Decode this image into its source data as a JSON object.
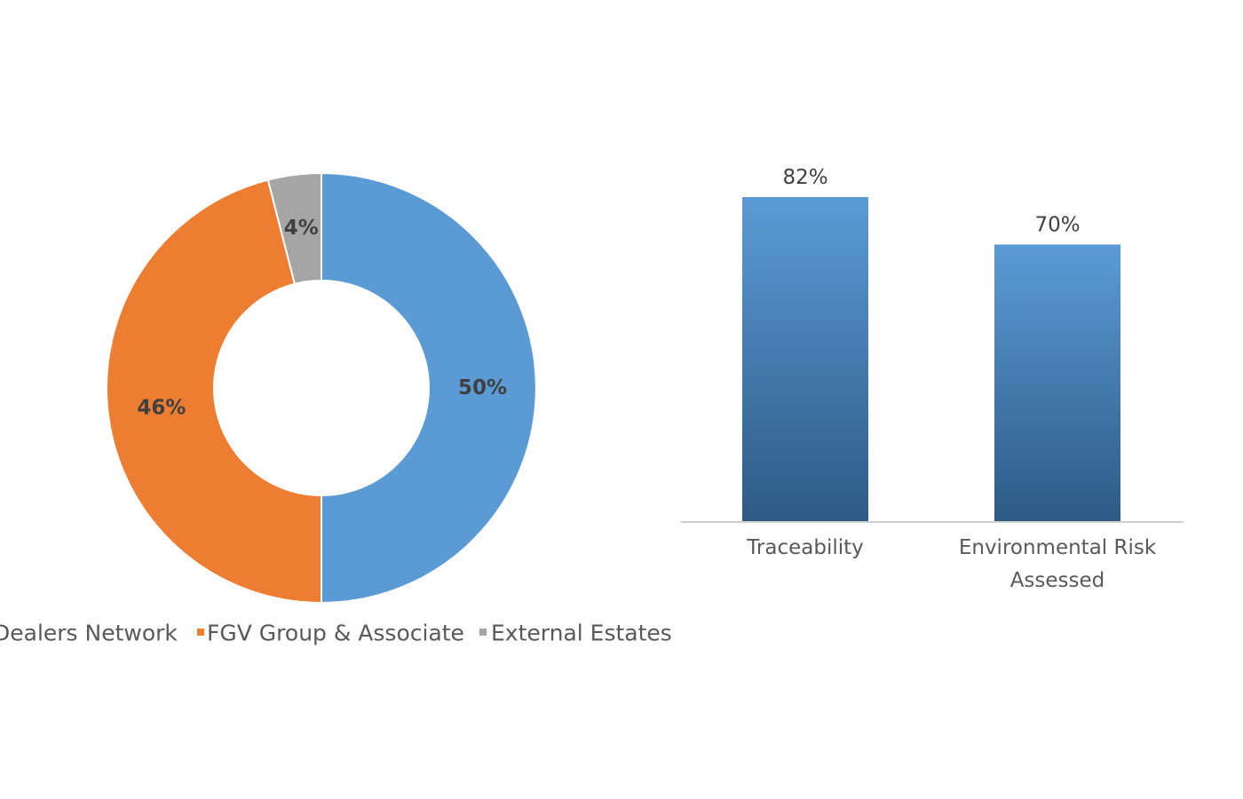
{
  "chart_data": [
    {
      "type": "pie",
      "variant": "donut",
      "categories": [
        "Dealers Network",
        "FGV Group & Associate",
        "External Estates"
      ],
      "values": [
        50,
        46,
        4
      ],
      "data_labels": [
        "50%",
        "46%",
        "4%"
      ],
      "colors": [
        "#5b9bd5",
        "#ed7d31",
        "#a5a5a5"
      ],
      "legend": {
        "position": "bottom",
        "entries": [
          "Dealers Network",
          "FGV Group & Associate",
          "External Estates"
        ]
      }
    },
    {
      "type": "bar",
      "categories": [
        "Traceability",
        "Environmental Risk Assessed"
      ],
      "category_label_lines": [
        [
          "Traceability"
        ],
        [
          "Environmental Risk",
          "Assessed"
        ]
      ],
      "values": [
        82,
        70
      ],
      "data_labels": [
        "82%",
        "70%"
      ],
      "unit": "%",
      "color_top": "#5b9bd5",
      "color_bottom": "#2e5a85",
      "grid": false
    }
  ]
}
